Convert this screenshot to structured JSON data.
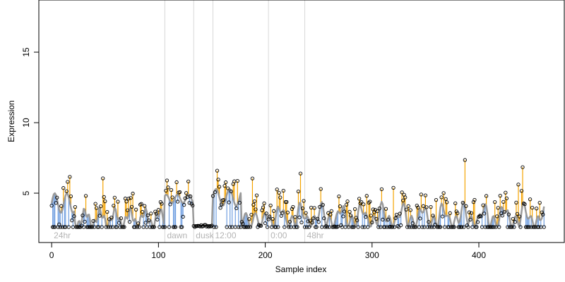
{
  "chart_data": {
    "type": "line",
    "title": "",
    "xlabel": "Sample index",
    "ylabel": "Expression",
    "xlim": [
      -12,
      480
    ],
    "ylim": [
      1.5,
      18.7
    ],
    "xticks": [
      0,
      100,
      200,
      300,
      400
    ],
    "yticks": [
      5,
      10,
      15
    ],
    "grid": false,
    "sections": [
      {
        "label": "24hr",
        "start": 0,
        "divider": null
      },
      {
        "label": "dawn",
        "start": 106,
        "divider": 106
      },
      {
        "label": "dusk",
        "start": 133,
        "divider": 133
      },
      {
        "label": "12:00",
        "start": 151,
        "divider": 151
      },
      {
        "label": "0:00",
        "start": 203,
        "divider": 203
      },
      {
        "label": "48hr",
        "start": 237,
        "divider": 237
      }
    ],
    "series": [],
    "points_summary": {
      "n_samples": 462,
      "baseline": 2.6,
      "typical_range": [
        2.6,
        7.5
      ],
      "max_observed": 7.5
    },
    "colors": {
      "fitted_line": "#9a9a9a",
      "above_stem": "#f5a300",
      "below_stem": "#6f9ee0",
      "divider": "#d8d8d8",
      "section_label": "#b4b4b4"
    }
  }
}
